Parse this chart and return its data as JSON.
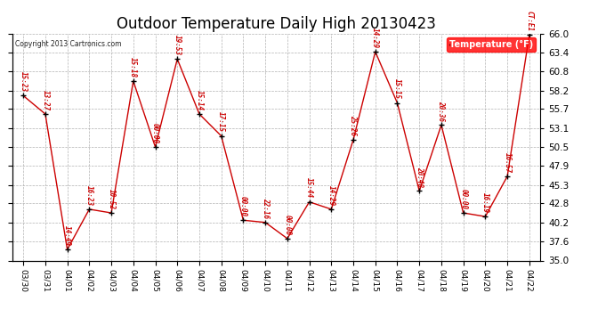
{
  "title": "Outdoor Temperature Daily High 20130423",
  "copyright": "Copyright 2013 Cartronics.com",
  "legend_label": "Temperature (°F)",
  "dates": [
    "03/30",
    "03/31",
    "04/01",
    "04/02",
    "04/03",
    "04/04",
    "04/05",
    "04/06",
    "04/07",
    "04/08",
    "04/09",
    "04/10",
    "04/11",
    "04/12",
    "04/13",
    "04/14",
    "04/15",
    "04/16",
    "04/17",
    "04/18",
    "04/19",
    "04/20",
    "04/21",
    "04/22"
  ],
  "temps": [
    57.5,
    55.0,
    36.5,
    42.0,
    41.5,
    59.5,
    50.5,
    62.5,
    55.0,
    52.0,
    40.5,
    40.2,
    38.0,
    43.0,
    42.0,
    51.5,
    63.5,
    56.5,
    44.5,
    53.5,
    41.5,
    41.0,
    46.5,
    65.8
  ],
  "time_labels": [
    "15:23",
    "13:27",
    "14:49",
    "16:23",
    "10:52",
    "15:18",
    "00:00",
    "19:53",
    "15:14",
    "17:15",
    "00:00",
    "22:16",
    "00:00",
    "15:44",
    "14:29",
    "25:26",
    "14:29",
    "15:15",
    "20:48",
    "20:36",
    "00:00",
    "16:19",
    "16:57",
    "CT:E1"
  ],
  "ylim": [
    35.0,
    66.0
  ],
  "yticks": [
    35.0,
    37.6,
    40.2,
    42.8,
    45.3,
    47.9,
    50.5,
    53.1,
    55.7,
    58.2,
    60.8,
    63.4,
    66.0
  ],
  "line_color": "#cc0000",
  "marker_color": "#000000",
  "bg_color": "#ffffff",
  "grid_color": "#aaaaaa",
  "title_fontsize": 12,
  "tick_fontsize": 7.5
}
